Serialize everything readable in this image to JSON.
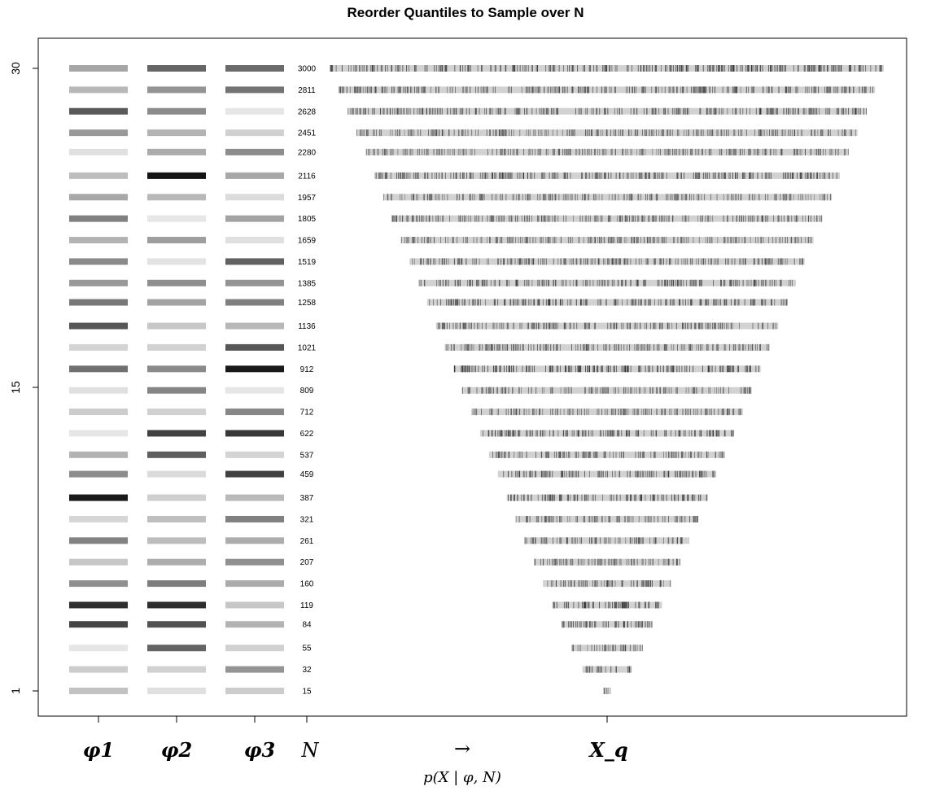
{
  "title": "Reorder Quantiles to Sample over N",
  "chart_data": {
    "type": "other",
    "title": "Reorder Quantiles to Sample over N",
    "y_ticks": [
      "30",
      "15",
      "1"
    ],
    "ylim": [
      1,
      30
    ],
    "x_labels": [
      "φ1",
      "φ2",
      "φ3",
      "N",
      "→",
      "X_q"
    ],
    "x_caption": "p(X | φ, N)",
    "rows": [
      {
        "y": 30,
        "N": 3000,
        "phi": [
          0.35,
          0.6,
          0.58
        ]
      },
      {
        "y": 29,
        "N": 2811,
        "phi": [
          0.28,
          0.42,
          0.55
        ]
      },
      {
        "y": 28,
        "N": 2628,
        "phi": [
          0.65,
          0.45,
          0.1
        ]
      },
      {
        "y": 27,
        "N": 2451,
        "phi": [
          0.4,
          0.3,
          0.18
        ]
      },
      {
        "y": 26.1,
        "N": 2280,
        "phi": [
          0.12,
          0.33,
          0.45
        ]
      },
      {
        "y": 25,
        "N": 2116,
        "phi": [
          0.26,
          0.92,
          0.34
        ]
      },
      {
        "y": 24,
        "N": 1957,
        "phi": [
          0.34,
          0.28,
          0.14
        ]
      },
      {
        "y": 23,
        "N": 1805,
        "phi": [
          0.5,
          0.1,
          0.36
        ]
      },
      {
        "y": 22,
        "N": 1659,
        "phi": [
          0.3,
          0.38,
          0.12
        ]
      },
      {
        "y": 21,
        "N": 1519,
        "phi": [
          0.46,
          0.11,
          0.62
        ]
      },
      {
        "y": 20,
        "N": 1385,
        "phi": [
          0.4,
          0.44,
          0.42
        ]
      },
      {
        "y": 19.1,
        "N": 1258,
        "phi": [
          0.53,
          0.36,
          0.5
        ]
      },
      {
        "y": 18,
        "N": 1136,
        "phi": [
          0.66,
          0.22,
          0.28
        ]
      },
      {
        "y": 17,
        "N": 1021,
        "phi": [
          0.17,
          0.18,
          0.66
        ]
      },
      {
        "y": 16,
        "N": 912,
        "phi": [
          0.56,
          0.46,
          0.9
        ]
      },
      {
        "y": 15,
        "N": 809,
        "phi": [
          0.12,
          0.48,
          0.1
        ]
      },
      {
        "y": 14,
        "N": 712,
        "phi": [
          0.2,
          0.18,
          0.47
        ]
      },
      {
        "y": 13,
        "N": 622,
        "phi": [
          0.1,
          0.74,
          0.78
        ]
      },
      {
        "y": 12,
        "N": 537,
        "phi": [
          0.3,
          0.63,
          0.17
        ]
      },
      {
        "y": 11.1,
        "N": 459,
        "phi": [
          0.45,
          0.14,
          0.74
        ]
      },
      {
        "y": 10,
        "N": 387,
        "phi": [
          0.9,
          0.19,
          0.27
        ]
      },
      {
        "y": 9,
        "N": 321,
        "phi": [
          0.16,
          0.25,
          0.5
        ]
      },
      {
        "y": 8,
        "N": 261,
        "phi": [
          0.49,
          0.26,
          0.32
        ]
      },
      {
        "y": 7,
        "N": 207,
        "phi": [
          0.22,
          0.32,
          0.44
        ]
      },
      {
        "y": 6,
        "N": 160,
        "phi": [
          0.44,
          0.51,
          0.33
        ]
      },
      {
        "y": 5,
        "N": 119,
        "phi": [
          0.82,
          0.82,
          0.22
        ]
      },
      {
        "y": 4.1,
        "N": 84,
        "phi": [
          0.73,
          0.68,
          0.3
        ]
      },
      {
        "y": 3,
        "N": 55,
        "phi": [
          0.1,
          0.61,
          0.18
        ]
      },
      {
        "y": 2,
        "N": 32,
        "phi": [
          0.2,
          0.18,
          0.42
        ]
      },
      {
        "y": 1,
        "N": 15,
        "phi": [
          0.24,
          0.12,
          0.2
        ]
      }
    ]
  }
}
